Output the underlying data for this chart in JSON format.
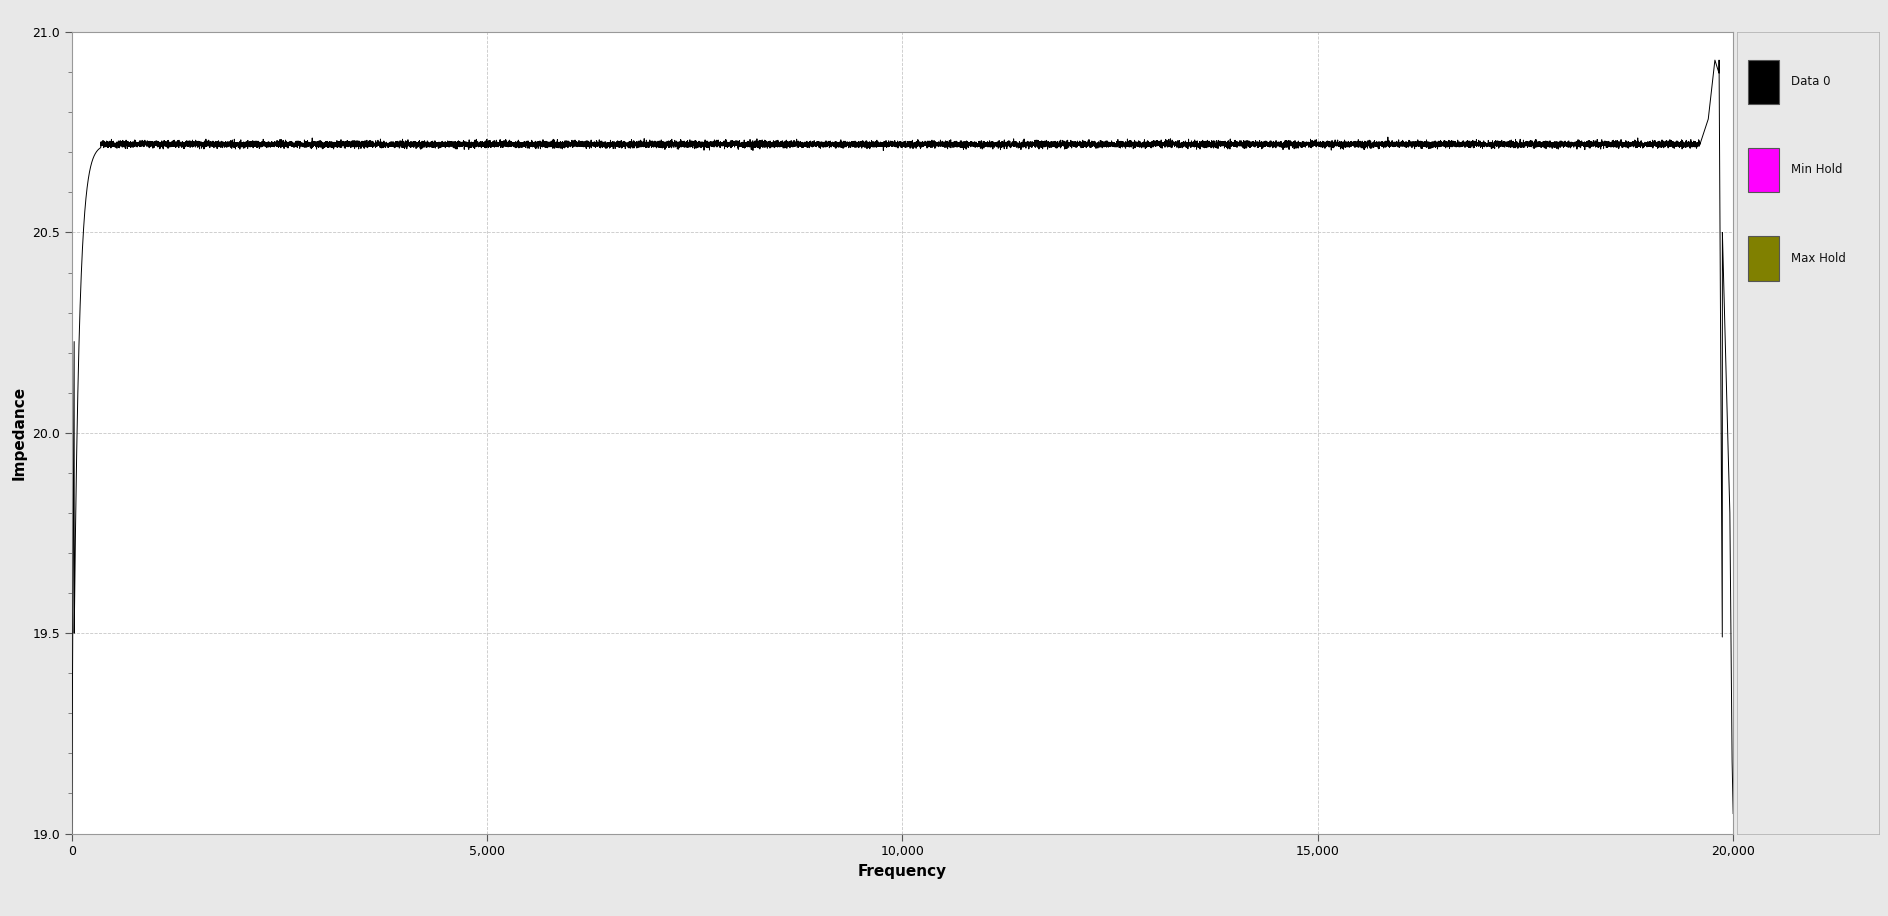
{
  "xlabel": "Frequency",
  "ylabel": "Impedance",
  "xlim": [
    0,
    20000
  ],
  "ylim": [
    19,
    21
  ],
  "yticks": [
    19,
    19.5,
    20,
    20.5,
    21
  ],
  "xticks": [
    0,
    5000,
    10000,
    15000,
    20000
  ],
  "xtick_labels": [
    "0",
    "5,000",
    "10,000",
    "15,000",
    "20,000"
  ],
  "background_color": "#e8e8e8",
  "plot_background_color": "#ffffff",
  "line_color": "#000000",
  "grid_color": "#c8c8c8",
  "legend_entries": [
    "Data 0",
    "Min Hold",
    "Max Hold"
  ],
  "legend_colors": [
    "#000000",
    "#ff00ff",
    "#808000"
  ],
  "steady_value": 20.72,
  "start_value": 19.0,
  "peak_value": 20.93,
  "drop_end_value": 19.05,
  "n_points": 20001
}
